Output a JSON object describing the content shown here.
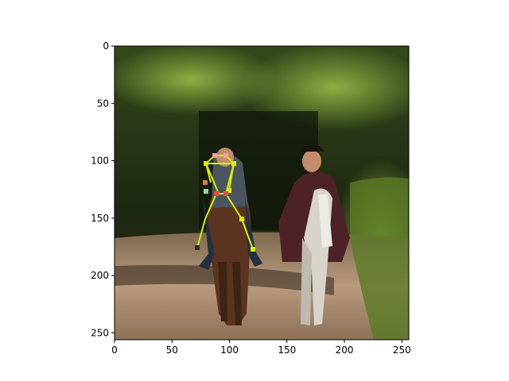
{
  "figure": {
    "background": "#ffffff",
    "axis_color": "#000000"
  },
  "image": {
    "description_colors": {
      "foliage_dark": "#1f2a12",
      "foliage_light": "#4d6b22",
      "road": "#a88c70",
      "shadow": "#3a2c20"
    },
    "subjects": [
      "horse-rider-left",
      "horse-rider-right"
    ]
  },
  "pose_overlay": {
    "line_color": "#d4f000",
    "joint_colors": [
      "#f2a0a0",
      "#90e090",
      "#d4f000",
      "#ff4040"
    ]
  },
  "axes": {
    "x_range": [
      0,
      256
    ],
    "y_range": [
      256,
      0
    ],
    "x_ticks": [
      {
        "value": 0,
        "label": "0"
      },
      {
        "value": 50,
        "label": "50"
      },
      {
        "value": 100,
        "label": "100"
      },
      {
        "value": 150,
        "label": "150"
      },
      {
        "value": 200,
        "label": "200"
      },
      {
        "value": 250,
        "label": "250"
      }
    ],
    "y_ticks": [
      {
        "value": 0,
        "label": "0"
      },
      {
        "value": 50,
        "label": "50"
      },
      {
        "value": 100,
        "label": "100"
      },
      {
        "value": 150,
        "label": "150"
      },
      {
        "value": 200,
        "label": "200"
      },
      {
        "value": 250,
        "label": "250"
      }
    ]
  }
}
